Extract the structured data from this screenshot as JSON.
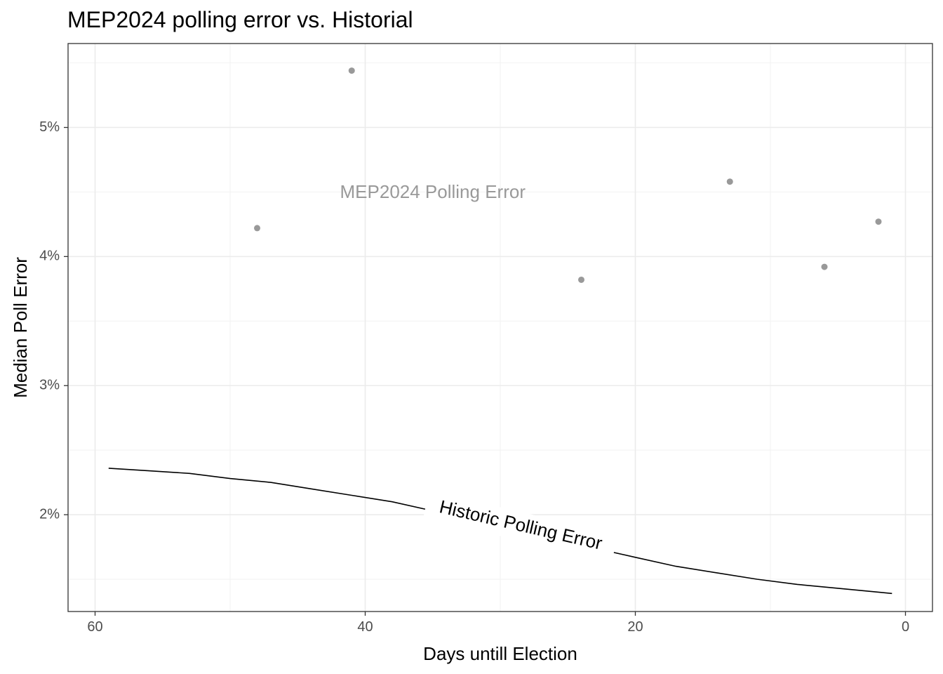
{
  "chart_data": {
    "type": "scatter",
    "title": "MEP2024 polling error vs. Historial",
    "xlabel": "Days untill Election",
    "ylabel": "Median Poll Error",
    "x_reversed": true,
    "xlim": [
      62,
      -2
    ],
    "ylim": [
      1.25,
      5.65
    ],
    "x_ticks": [
      60,
      40,
      20,
      0
    ],
    "x_tick_labels": [
      "60",
      "40",
      "20",
      "0"
    ],
    "y_ticks": [
      2,
      3,
      4,
      5
    ],
    "y_tick_labels": [
      "2%",
      "3%",
      "4%",
      "5%"
    ],
    "grid": true,
    "series": [
      {
        "name": "MEP2024 Polling Error",
        "kind": "points",
        "color": "#999999",
        "x": [
          48,
          41,
          24,
          13,
          6,
          2
        ],
        "y": [
          4.22,
          5.44,
          3.82,
          4.58,
          3.92,
          4.27
        ]
      },
      {
        "name": "Historic Polling Error",
        "kind": "line",
        "color": "#000000",
        "x": [
          59,
          56,
          53,
          50,
          47,
          44,
          41,
          38,
          35,
          32,
          29,
          26,
          23,
          20,
          17,
          14,
          11,
          8,
          5,
          2,
          1
        ],
        "y": [
          2.36,
          2.34,
          2.32,
          2.28,
          2.25,
          2.2,
          2.15,
          2.1,
          2.03,
          1.96,
          1.88,
          1.81,
          1.74,
          1.67,
          1.6,
          1.55,
          1.5,
          1.46,
          1.43,
          1.4,
          1.39
        ]
      }
    ],
    "annotations": [
      {
        "text": "MEP2024 Polling Error",
        "x": 35,
        "y": 4.49,
        "color": "#999999"
      },
      {
        "text": "Historic Polling Error",
        "x": 28.5,
        "y": 1.91,
        "color": "#000000"
      }
    ]
  }
}
